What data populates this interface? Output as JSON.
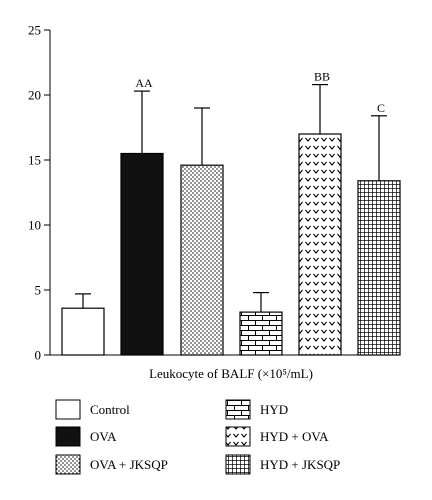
{
  "chart_data": {
    "type": "bar",
    "xlabel": "Leukocyte of BALF (×10⁵/mL)",
    "ylabel": "",
    "ylim": [
      0,
      25
    ],
    "yticks": [
      "0",
      "5",
      "10",
      "15",
      "20",
      "25"
    ],
    "grid": false,
    "legend_position": "bottom",
    "categories": [
      "Control",
      "OVA",
      "OVA + JKSQP",
      "HYD",
      "HYD + OVA",
      "HYD + JKSQP"
    ],
    "values": [
      3.6,
      15.5,
      14.6,
      3.3,
      17.0,
      13.4
    ],
    "errors": [
      1.1,
      4.8,
      4.4,
      1.5,
      3.8,
      5.0
    ],
    "annotations": [
      "",
      "AA",
      "",
      "",
      "BB",
      "C"
    ],
    "patterns": [
      "white",
      "black",
      "dots",
      "brick",
      "chevron",
      "grid"
    ],
    "colors": {
      "stroke": "#000000",
      "fill_dark": "#111111",
      "background": "#ffffff"
    }
  }
}
